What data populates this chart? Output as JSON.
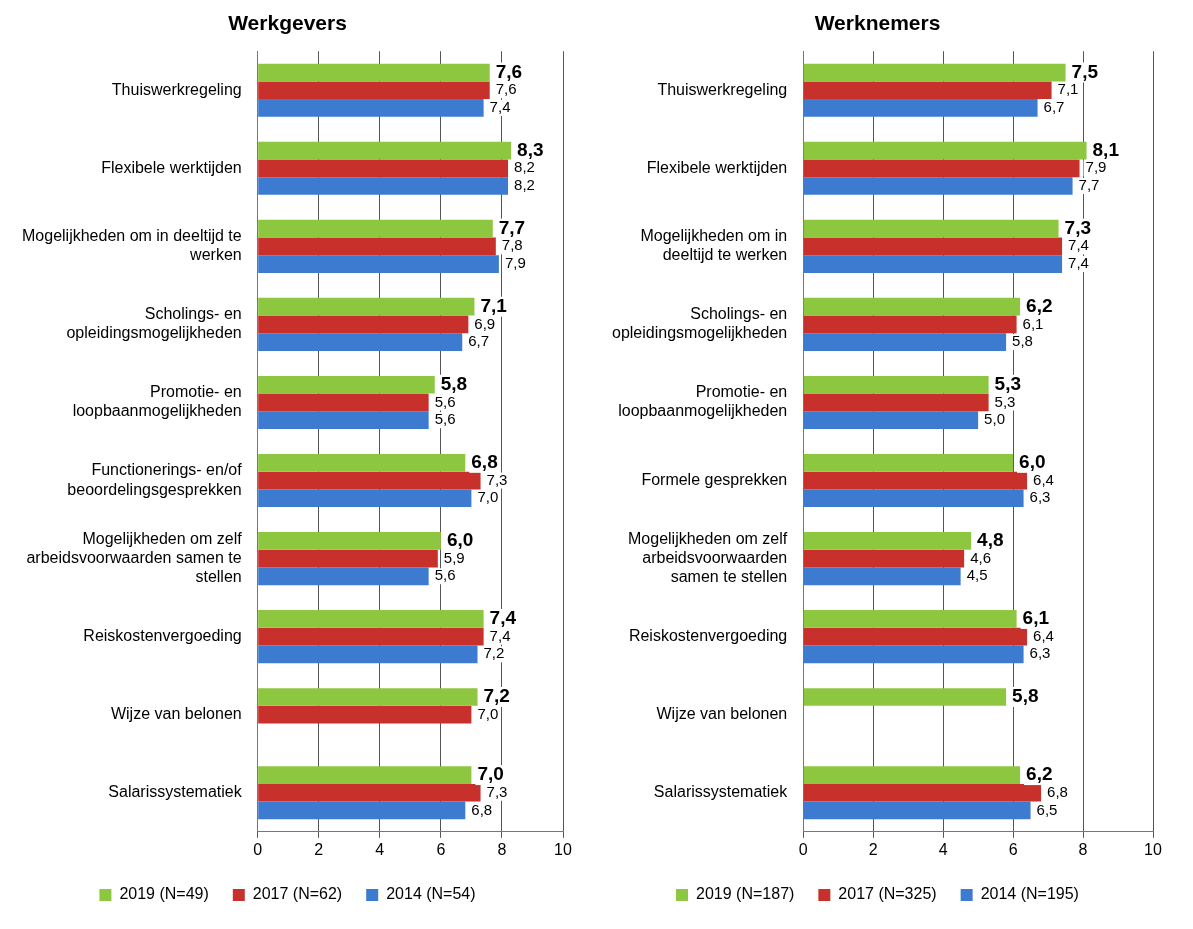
{
  "chart_data": [
    {
      "type": "bar",
      "orientation": "horizontal",
      "title": "Werkgevers",
      "categories": [
        "Thuiswerkregeling",
        "Flexibele werktijden",
        "Mogelijkheden om in deeltijd te werken",
        "Scholings- en opleidingsmogelijkheden",
        "Promotie- en loopbaanmogelijkheden",
        "Functionerings- en/of beoordelingsgesprekken",
        "Mogelijkheden om zelf arbeidsvoorwaarden samen te stellen",
        "Reiskostenvergoeding",
        "Wijze van belonen",
        "Salarissystematiek"
      ],
      "series": [
        {
          "name": "2019 (N=49)",
          "color": "#8dc63f",
          "values": [
            7.6,
            8.3,
            7.7,
            7.1,
            5.8,
            6.8,
            6.0,
            7.4,
            7.2,
            7.0
          ],
          "value_labels": [
            "7,6",
            "8,3",
            "7,7",
            "7,1",
            "5,8",
            "6,8",
            "6,0",
            "7,4",
            "7,2",
            "7,0"
          ]
        },
        {
          "name": "2017 (N=62)",
          "color": "#c8302c",
          "values": [
            7.6,
            8.2,
            7.8,
            6.9,
            5.6,
            7.3,
            5.9,
            7.4,
            7.0,
            7.3
          ],
          "value_labels": [
            "7,6",
            "8,2",
            "7,8",
            "6,9",
            "5,6",
            "7,3",
            "5,9",
            "7,4",
            "7,0",
            "7,3"
          ]
        },
        {
          "name": "2014 (N=54)",
          "color": "#3d7bd0",
          "values": [
            7.4,
            8.2,
            7.9,
            6.7,
            5.6,
            7.0,
            5.6,
            7.2,
            null,
            6.8
          ],
          "value_labels": [
            "7,4",
            "8,2",
            "7,9",
            "6,7",
            "5,6",
            "7,0",
            "5,6",
            "7,2",
            null,
            "6,8"
          ]
        }
      ],
      "xlim": [
        0,
        10
      ],
      "xticks": [
        0,
        2,
        4,
        6,
        8,
        10
      ],
      "grid": "x",
      "legend": "bottom"
    },
    {
      "type": "bar",
      "orientation": "horizontal",
      "title": "Werknemers",
      "categories": [
        "Thuiswerkregeling",
        "Flexibele werktijden",
        "Mogelijkheden om in deeltijd te werken",
        "Scholings- en opleidingsmogelijkheden",
        "Promotie- en loopbaanmogelijkheden",
        "Formele gesprekken",
        "Mogelijkheden om zelf arbeidsvoorwaarden samen te stellen",
        "Reiskostenvergoeding",
        "Wijze van belonen",
        "Salarissystematiek"
      ],
      "series": [
        {
          "name": "2019 (N=187)",
          "color": "#8dc63f",
          "values": [
            7.5,
            8.1,
            7.3,
            6.2,
            5.3,
            6.0,
            4.8,
            6.1,
            5.8,
            6.2
          ],
          "value_labels": [
            "7,5",
            "8,1",
            "7,3",
            "6,2",
            "5,3",
            "6,0",
            "4,8",
            "6,1",
            "5,8",
            "6,2"
          ]
        },
        {
          "name": "2017 (N=325)",
          "color": "#c8302c",
          "values": [
            7.1,
            7.9,
            7.4,
            6.1,
            5.3,
            6.4,
            4.6,
            6.4,
            null,
            6.8
          ],
          "value_labels": [
            "7,1",
            "7,9",
            "7,4",
            "6,1",
            "5,3",
            "6,4",
            "4,6",
            "6,4",
            null,
            "6,8"
          ]
        },
        {
          "name": "2014 (N=195)",
          "color": "#3d7bd0",
          "values": [
            6.7,
            7.7,
            7.4,
            5.8,
            5.0,
            6.3,
            4.5,
            6.3,
            null,
            6.5
          ],
          "value_labels": [
            "6,7",
            "7,7",
            "7,4",
            "5,8",
            "5,0",
            "6,3",
            "4,5",
            "6,3",
            null,
            "6,5"
          ]
        }
      ],
      "xlim": [
        0,
        10
      ],
      "xticks": [
        0,
        2,
        4,
        6,
        8,
        10
      ],
      "grid": "x",
      "legend": "bottom"
    }
  ]
}
